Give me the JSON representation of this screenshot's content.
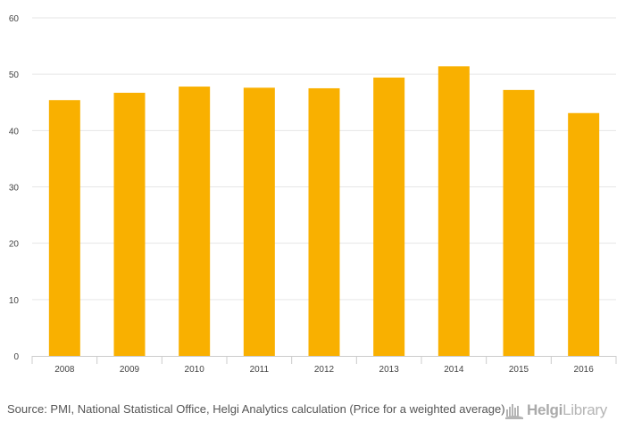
{
  "chart_data": {
    "type": "bar",
    "categories": [
      "2008",
      "2009",
      "2010",
      "2011",
      "2012",
      "2013",
      "2014",
      "2015",
      "2016"
    ],
    "values": [
      45.4,
      46.7,
      47.8,
      47.6,
      47.5,
      49.4,
      51.4,
      47.2,
      43.1
    ],
    "title": "",
    "xlabel": "",
    "ylabel": "",
    "ylim": [
      0,
      60
    ],
    "yticks": [
      0,
      10,
      20,
      30,
      40,
      50,
      60
    ],
    "grid": true,
    "bar_color": "#f9b000",
    "grid_color": "#e6e6e6"
  },
  "source": {
    "text": "Source: PMI, National Statistical Office, Helgi Analytics calculation (Price for a weighted average)"
  },
  "logo": {
    "brand_bold": "Helgi",
    "brand_regular": "Library",
    "icon": "helgi-library-icon"
  }
}
